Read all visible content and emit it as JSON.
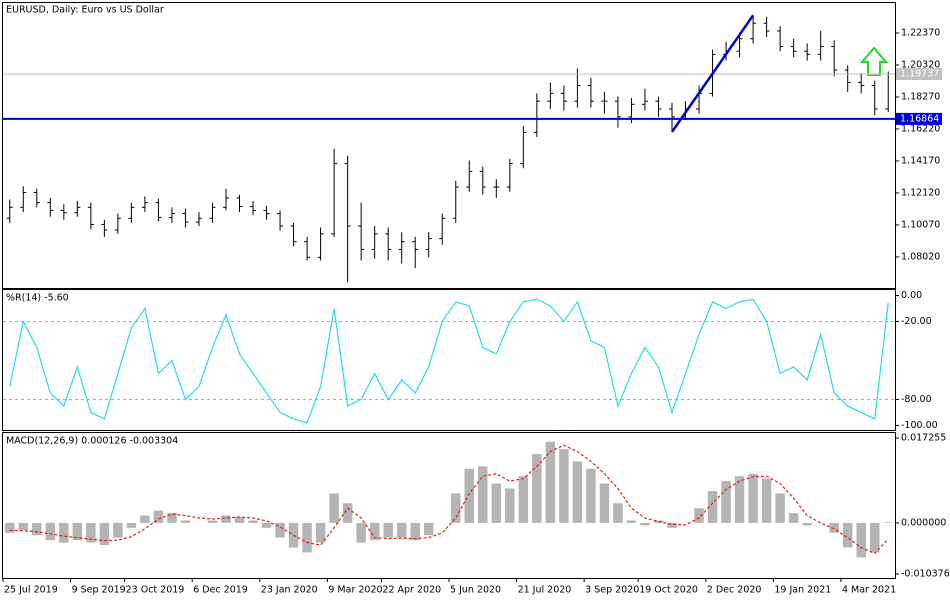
{
  "chart_data": [
    {
      "type": "ohlc",
      "title": "EURUSD, Daily:  Euro vs US Dollar",
      "color": "#000000",
      "categories": [
        "25 Jul 2019",
        null,
        null,
        null,
        null,
        "9 Sep 2019",
        null,
        null,
        null,
        "23 Oct 2019",
        null,
        null,
        null,
        null,
        "6 Dec 2019",
        null,
        null,
        null,
        null,
        "23 Jan 2020",
        null,
        null,
        null,
        null,
        "9 Mar 2020",
        null,
        null,
        null,
        "22 Apr 2020",
        null,
        null,
        null,
        null,
        "5 Jun 2020",
        null,
        null,
        null,
        null,
        "21 Jul 2020",
        null,
        null,
        null,
        null,
        "3 Sep 2020",
        null,
        null,
        null,
        "19 Oct 2020",
        null,
        null,
        null,
        null,
        "2 Dec 2020",
        null,
        null,
        null,
        null,
        "19 Jan 2021",
        null,
        null,
        null,
        null,
        "4 Mar 2021",
        null,
        null,
        null
      ],
      "open": [
        1.105,
        1.112,
        1.1215,
        1.115,
        1.11,
        1.1085,
        1.112,
        1.101,
        1.0975,
        1.105,
        1.112,
        1.115,
        1.1055,
        1.108,
        1.1025,
        1.105,
        1.112,
        1.118,
        1.1125,
        1.11,
        1.108,
        1.1,
        1.09,
        1.08,
        1.095,
        1.14,
        1.1,
        1.085,
        1.095,
        1.085,
        1.09,
        1.085,
        1.092,
        1.105,
        1.125,
        1.135,
        1.125,
        1.125,
        1.14,
        1.16,
        1.18,
        1.185,
        1.18,
        1.19,
        1.18,
        1.18,
        1.17,
        1.178,
        1.18,
        1.175,
        1.17,
        1.175,
        1.185,
        1.21,
        1.212,
        1.22,
        1.23,
        1.225,
        1.215,
        1.212,
        1.21,
        1.215,
        1.2,
        1.192,
        1.19,
        1.175
      ],
      "high": [
        1.117,
        1.1255,
        1.124,
        1.118,
        1.114,
        1.116,
        1.115,
        1.104,
        1.108,
        1.115,
        1.119,
        1.1175,
        1.112,
        1.111,
        1.109,
        1.115,
        1.124,
        1.12,
        1.116,
        1.113,
        1.11,
        1.102,
        1.093,
        1.099,
        1.1495,
        1.145,
        1.115,
        1.1,
        1.099,
        1.096,
        1.093,
        1.096,
        1.108,
        1.129,
        1.142,
        1.138,
        1.13,
        1.143,
        1.164,
        1.185,
        1.192,
        1.19,
        1.201,
        1.195,
        1.186,
        1.183,
        1.182,
        1.188,
        1.183,
        1.179,
        1.18,
        1.19,
        1.213,
        1.218,
        1.224,
        1.235,
        1.234,
        1.228,
        1.22,
        1.217,
        1.225,
        1.219,
        1.203,
        1.198,
        1.193,
        1.199
      ],
      "low": [
        1.102,
        1.109,
        1.112,
        1.106,
        1.104,
        1.106,
        1.098,
        1.093,
        1.095,
        1.102,
        1.109,
        1.103,
        1.102,
        1.099,
        1.1,
        1.102,
        1.11,
        1.109,
        1.107,
        1.104,
        1.097,
        1.087,
        1.078,
        1.078,
        1.093,
        1.064,
        1.078,
        1.079,
        1.078,
        1.076,
        1.073,
        1.08,
        1.088,
        1.102,
        1.122,
        1.12,
        1.118,
        1.122,
        1.137,
        1.157,
        1.175,
        1.174,
        1.176,
        1.176,
        1.172,
        1.163,
        1.166,
        1.174,
        1.17,
        1.1603,
        1.168,
        1.172,
        1.183,
        1.206,
        1.208,
        1.217,
        1.221,
        1.212,
        1.208,
        1.206,
        1.206,
        1.196,
        1.186,
        1.185,
        1.171,
        1.173
      ],
      "close": [
        1.112,
        1.1215,
        1.115,
        1.11,
        1.1085,
        1.112,
        1.101,
        1.0975,
        1.105,
        1.112,
        1.115,
        1.1055,
        1.108,
        1.1025,
        1.105,
        1.112,
        1.118,
        1.1125,
        1.11,
        1.108,
        1.1,
        1.09,
        1.08,
        1.095,
        1.14,
        1.1,
        1.085,
        1.095,
        1.085,
        1.09,
        1.085,
        1.092,
        1.105,
        1.125,
        1.135,
        1.125,
        1.125,
        1.14,
        1.16,
        1.18,
        1.185,
        1.18,
        1.19,
        1.18,
        1.18,
        1.17,
        1.178,
        1.18,
        1.175,
        1.17,
        1.175,
        1.185,
        1.21,
        1.212,
        1.22,
        1.23,
        1.225,
        1.215,
        1.212,
        1.21,
        1.215,
        1.2,
        1.192,
        1.19,
        1.175,
        1.19737
      ],
      "ylim": [
        1.0603,
        1.2429
      ],
      "yticks": [
        {
          "value": 1.2237,
          "label": "1.22370"
        },
        {
          "value": 1.2032,
          "label": "1.20320"
        },
        {
          "value": 1.1827,
          "label": "1.18270"
        },
        {
          "value": 1.1622,
          "label": "1.16220"
        },
        {
          "value": 1.1417,
          "label": "1.14170"
        },
        {
          "value": 1.1212,
          "label": "1.12120"
        },
        {
          "value": 1.1007,
          "label": "1.10070"
        },
        {
          "value": 1.0802,
          "label": "1.08020"
        }
      ],
      "level": 1.16864,
      "level_color": "#0000cc",
      "trend_line": {
        "from": 1.1603,
        "to": 1.235,
        "color": "#0000cc"
      }
    },
    {
      "type": "line",
      "title": "%R(14) -5.60",
      "color": "#22dde6",
      "values": [
        -70,
        -20,
        -40,
        -75,
        -85,
        -55,
        -90,
        -95,
        -60,
        -25,
        -10,
        -60,
        -50,
        -80,
        -70,
        -40,
        -15,
        -45,
        -60,
        -75,
        -90,
        -95,
        -98,
        -70,
        -10,
        -85,
        -80,
        -60,
        -80,
        -65,
        -75,
        -55,
        -20,
        -5,
        -8,
        -40,
        -45,
        -20,
        -5,
        -3,
        -8,
        -20,
        -5,
        -35,
        -40,
        -85,
        -60,
        -40,
        -55,
        -90,
        -60,
        -30,
        -5,
        -10,
        -5,
        -3,
        -20,
        -60,
        -55,
        -65,
        -30,
        -75,
        -85,
        -90,
        -95,
        -5.6
      ],
      "ylim": [
        -103.5,
        4.2
      ],
      "yticks": [
        {
          "value": 0,
          "label": "0.00"
        },
        {
          "value": -20,
          "label": "-20.00"
        },
        {
          "value": -80,
          "label": "-80.00"
        },
        {
          "value": -100,
          "label": "-100.00"
        }
      ],
      "levels": [
        -20,
        -80
      ]
    },
    {
      "type": "macd",
      "title": "MACD(12,26,9) 0.000126 -0.003304",
      "series": [
        {
          "name": "MACD",
          "color": "#b4b4b4",
          "values": [
            -0.002,
            -0.0015,
            -0.0025,
            -0.0035,
            -0.004,
            -0.0035,
            -0.004,
            -0.0045,
            -0.003,
            -0.001,
            0.0015,
            0.0025,
            0.002,
            0.0005,
            0.0,
            0.0005,
            0.0015,
            0.0012,
            0.0005,
            -0.001,
            -0.003,
            -0.005,
            -0.006,
            -0.004,
            0.006,
            0.004,
            -0.004,
            -0.0035,
            -0.003,
            -0.003,
            -0.0035,
            -0.0025,
            0.0,
            0.006,
            0.011,
            0.0115,
            0.008,
            0.007,
            0.0095,
            0.014,
            0.0165,
            0.015,
            0.0125,
            0.011,
            0.008,
            0.004,
            0.0005,
            -0.0005,
            0.0005,
            -0.001,
            0.0,
            0.003,
            0.0065,
            0.0085,
            0.0095,
            0.01,
            0.009,
            0.006,
            0.002,
            -0.0005,
            0.0,
            -0.002,
            -0.005,
            -0.007,
            -0.006,
            0.000126
          ]
        },
        {
          "name": "Signal",
          "color": "#e0201a",
          "values": [
            -0.0015,
            -0.0016,
            -0.0018,
            -0.0022,
            -0.0027,
            -0.003,
            -0.0033,
            -0.0036,
            -0.0035,
            -0.0028,
            -0.0012,
            0.0008,
            0.0018,
            0.0015,
            0.001,
            0.0008,
            0.001,
            0.0012,
            0.001,
            0.0004,
            -0.0008,
            -0.0025,
            -0.004,
            -0.0045,
            -0.001,
            0.003,
            0.001,
            -0.003,
            -0.0032,
            -0.0031,
            -0.0032,
            -0.003,
            -0.002,
            0.001,
            0.006,
            0.0095,
            0.01,
            0.0085,
            0.009,
            0.0115,
            0.0145,
            0.0158,
            0.0145,
            0.0125,
            0.01,
            0.007,
            0.003,
            0.001,
            0.0003,
            -0.0003,
            -0.0004,
            0.001,
            0.004,
            0.0068,
            0.0085,
            0.0094,
            0.0095,
            0.008,
            0.005,
            0.0015,
            0.0,
            -0.0012,
            -0.003,
            -0.005,
            -0.0062,
            -0.003304
          ]
        }
      ],
      "ylim": [
        -0.011198,
        0.018282
      ],
      "yticks": [
        0.017255,
        {
          "value": 0,
          "label": "0.000000"
        },
        -0.010376
      ]
    }
  ]
}
